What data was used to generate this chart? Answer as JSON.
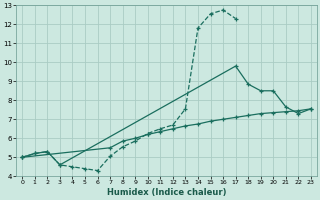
{
  "xlabel": "Humidex (Indice chaleur)",
  "bg_color": "#cce8e0",
  "grid_color": "#aaccc4",
  "line_color": "#1a6e5e",
  "xlim": [
    -0.5,
    23.5
  ],
  "ylim": [
    4,
    13
  ],
  "xticks": [
    0,
    1,
    2,
    3,
    4,
    5,
    6,
    7,
    8,
    9,
    10,
    11,
    12,
    13,
    14,
    15,
    16,
    17,
    18,
    19,
    20,
    21,
    22,
    23
  ],
  "yticks": [
    4,
    5,
    6,
    7,
    8,
    9,
    10,
    11,
    12,
    13
  ],
  "curve_dashed_x": [
    0,
    1,
    2,
    3,
    4,
    5,
    6,
    7,
    8,
    9,
    10,
    11,
    12,
    13,
    14,
    15,
    16,
    17
  ],
  "curve_dashed_y": [
    5.0,
    5.2,
    5.3,
    4.6,
    4.5,
    4.4,
    4.3,
    5.05,
    5.55,
    5.85,
    6.25,
    6.5,
    6.7,
    7.55,
    11.8,
    12.55,
    12.75,
    12.3
  ],
  "curve_solid_x": [
    0,
    1,
    2,
    3,
    17,
    18,
    19,
    20,
    21,
    22,
    23
  ],
  "curve_solid_y": [
    5.0,
    5.2,
    5.3,
    4.6,
    9.8,
    8.85,
    8.5,
    8.5,
    7.65,
    7.3,
    7.55
  ],
  "curve_linear_x": [
    0,
    7,
    8,
    9,
    10,
    11,
    12,
    13,
    14,
    15,
    16,
    17,
    18,
    19,
    20,
    21,
    22,
    23
  ],
  "curve_linear_y": [
    5.0,
    5.5,
    5.85,
    6.0,
    6.2,
    6.35,
    6.5,
    6.65,
    6.75,
    6.9,
    7.0,
    7.1,
    7.2,
    7.3,
    7.35,
    7.4,
    7.45,
    7.55
  ]
}
